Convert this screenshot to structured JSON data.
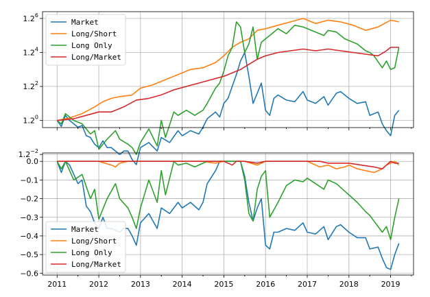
{
  "chart_data": [
    {
      "type": "line",
      "yscale": "log2",
      "ylim": [
        -0.42,
        6.4
      ],
      "xlim": [
        2010.65,
        2019.55
      ],
      "grid": true,
      "legend_placement": "top-left",
      "yticks": [
        {
          "exp": 6,
          "label": "6"
        },
        {
          "exp": 4,
          "label": "4"
        },
        {
          "exp": 2,
          "label": "2"
        },
        {
          "exp": 0,
          "label": "0"
        },
        {
          "exp": -2,
          "label": "−2"
        }
      ],
      "ytick_base": "1.2",
      "series": [
        {
          "name": "Market",
          "color": "#1f77b4",
          "x": [
            2011.0,
            2011.1,
            2011.2,
            2011.3,
            2011.5,
            2011.6,
            2011.7,
            2011.8,
            2011.9,
            2012.0,
            2012.1,
            2012.2,
            2012.3,
            2012.5,
            2012.6,
            2012.7,
            2012.8,
            2012.9,
            2013.0,
            2013.2,
            2013.4,
            2013.5,
            2013.7,
            2013.9,
            2014.0,
            2014.2,
            2014.4,
            2014.5,
            2014.6,
            2014.8,
            2014.9,
            2015.0,
            2015.1,
            2015.2,
            2015.3,
            2015.4,
            2015.5,
            2015.6,
            2015.7,
            2015.8,
            2015.9,
            2016.0,
            2016.1,
            2016.2,
            2016.3,
            2016.5,
            2016.7,
            2016.9,
            2017.0,
            2017.2,
            2017.4,
            2017.5,
            2017.7,
            2017.8,
            2018.0,
            2018.2,
            2018.4,
            2018.5,
            2018.7,
            2018.8,
            2018.9,
            2019.0,
            2019.1,
            2019.2
          ],
          "y": [
            0,
            -0.35,
            0.3,
            0,
            -0.4,
            -0.3,
            -0.9,
            -1.0,
            -1.4,
            -1.6,
            -1.2,
            -1.6,
            -1.6,
            -2.0,
            -1.8,
            -1.8,
            -2.3,
            -2.6,
            -1.6,
            -1.3,
            -1.8,
            -1.0,
            -1.3,
            -0.6,
            -0.9,
            -0.6,
            -0.8,
            -0.4,
            0.1,
            0.5,
            0.2,
            1.0,
            1.3,
            2.0,
            2.7,
            3.5,
            4.0,
            2.6,
            1.0,
            1.6,
            2.2,
            0.6,
            0.3,
            1.3,
            1.5,
            1.2,
            1.1,
            1.7,
            1.2,
            1.0,
            1.4,
            0.9,
            1.6,
            1.7,
            1.3,
            1.0,
            1.1,
            0.3,
            0.5,
            -0.2,
            -0.6,
            -0.9,
            0.3,
            0.6
          ]
        },
        {
          "name": "Long/Short",
          "color": "#ff7f0e",
          "x": [
            2011.0,
            2011.3,
            2011.6,
            2011.9,
            2012.1,
            2012.3,
            2012.5,
            2012.8,
            2013.0,
            2013.3,
            2013.6,
            2013.9,
            2014.2,
            2014.5,
            2014.8,
            2015.0,
            2015.2,
            2015.4,
            2015.6,
            2015.8,
            2016.0,
            2016.3,
            2016.6,
            2016.9,
            2017.2,
            2017.5,
            2017.8,
            2018.1,
            2018.4,
            2018.7,
            2019.0,
            2019.2
          ],
          "y": [
            0,
            0.15,
            0.4,
            0.8,
            1.1,
            1.3,
            1.4,
            1.5,
            1.9,
            2.1,
            2.4,
            2.7,
            3.0,
            3.1,
            3.4,
            3.8,
            4.3,
            4.6,
            4.8,
            5.3,
            5.4,
            5.6,
            5.8,
            6.0,
            5.7,
            5.9,
            5.8,
            5.6,
            5.3,
            5.5,
            5.9,
            5.8
          ]
        },
        {
          "name": "Long Only",
          "color": "#2ca02c",
          "x": [
            2011.0,
            2011.1,
            2011.2,
            2011.4,
            2011.6,
            2011.8,
            2011.9,
            2012.0,
            2012.2,
            2012.4,
            2012.5,
            2012.7,
            2012.8,
            2012.9,
            2013.0,
            2013.2,
            2013.4,
            2013.5,
            2013.6,
            2013.8,
            2013.9,
            2014.1,
            2014.3,
            2014.5,
            2014.6,
            2014.8,
            2014.9,
            2015.0,
            2015.1,
            2015.2,
            2015.3,
            2015.4,
            2015.5,
            2015.6,
            2015.7,
            2015.8,
            2015.9,
            2016.0,
            2016.1,
            2016.3,
            2016.5,
            2016.7,
            2016.9,
            2017.0,
            2017.2,
            2017.4,
            2017.5,
            2017.7,
            2017.9,
            2018.0,
            2018.2,
            2018.4,
            2018.5,
            2018.6,
            2018.8,
            2018.9,
            2019.0,
            2019.1,
            2019.2
          ],
          "y": [
            0,
            -0.2,
            0.4,
            0,
            -0.2,
            -0.8,
            -0.6,
            -1.7,
            -1.1,
            -0.6,
            -1.1,
            -1.4,
            -1.6,
            -2.0,
            -1.3,
            -0.5,
            -1.5,
            0.0,
            -1.0,
            0.5,
            0.3,
            0.6,
            0.3,
            0.6,
            1.0,
            1.9,
            2.2,
            2.9,
            3.8,
            4.3,
            5.8,
            5.5,
            4.0,
            4.5,
            5.5,
            3.6,
            4.6,
            4.8,
            5.0,
            5.4,
            5.1,
            5.6,
            5.5,
            5.4,
            5.2,
            5.0,
            5.3,
            5.2,
            4.8,
            4.7,
            4.5,
            4.1,
            4.0,
            3.8,
            3.1,
            3.5,
            3.0,
            3.1,
            4.3
          ]
        },
        {
          "name": "Long/Market",
          "color": "#d62728",
          "x": [
            2011.0,
            2011.4,
            2011.7,
            2012.0,
            2012.3,
            2012.6,
            2012.9,
            2013.2,
            2013.5,
            2013.8,
            2014.1,
            2014.4,
            2014.7,
            2015.0,
            2015.2,
            2015.4,
            2015.6,
            2015.8,
            2016.0,
            2016.3,
            2016.6,
            2016.9,
            2017.2,
            2017.5,
            2017.8,
            2018.1,
            2018.4,
            2018.7,
            2018.9,
            2019.0,
            2019.2
          ],
          "y": [
            0,
            0.1,
            0.3,
            0.5,
            0.5,
            0.8,
            1.2,
            1.3,
            1.5,
            1.8,
            2.0,
            2.2,
            2.4,
            2.6,
            2.8,
            3.0,
            3.3,
            3.6,
            3.8,
            4.0,
            4.1,
            4.2,
            4.1,
            4.2,
            4.1,
            4.0,
            3.9,
            3.8,
            4.1,
            4.3,
            4.3
          ]
        }
      ]
    },
    {
      "type": "line",
      "ylim": [
        -0.61,
        0.045
      ],
      "xlim": [
        2010.65,
        2019.55
      ],
      "grid": true,
      "legend_placement": "bottom-left",
      "yticks": [
        0.0,
        -0.1,
        -0.2,
        -0.3,
        -0.4,
        -0.5,
        -0.6
      ],
      "ytick_labels": [
        "0.0",
        "−0.1",
        "−0.2",
        "−0.3",
        "−0.4",
        "−0.5",
        "−0.6"
      ],
      "xticks": [
        2011,
        2012,
        2013,
        2014,
        2015,
        2016,
        2017,
        2018,
        2019
      ],
      "xtick_labels": [
        "2011",
        "2012",
        "2013",
        "2014",
        "2015",
        "2016",
        "2017",
        "2018",
        "2019"
      ],
      "series": [
        {
          "name": "Market",
          "color": "#1f77b4",
          "x": [
            2011.0,
            2011.1,
            2011.2,
            2011.3,
            2011.5,
            2011.6,
            2011.7,
            2011.8,
            2011.9,
            2012.0,
            2012.1,
            2012.2,
            2012.3,
            2012.5,
            2012.6,
            2012.7,
            2012.8,
            2012.9,
            2013.0,
            2013.2,
            2013.4,
            2013.5,
            2013.7,
            2013.9,
            2014.0,
            2014.2,
            2014.4,
            2014.5,
            2014.6,
            2014.8,
            2014.9,
            2015.0,
            2015.3,
            2015.4,
            2015.5,
            2015.6,
            2015.7,
            2015.8,
            2015.9,
            2016.0,
            2016.1,
            2016.2,
            2016.3,
            2016.5,
            2016.7,
            2016.9,
            2017.0,
            2017.2,
            2017.4,
            2017.5,
            2017.7,
            2017.8,
            2018.0,
            2018.2,
            2018.4,
            2018.5,
            2018.7,
            2018.8,
            2018.9,
            2019.0,
            2019.1,
            2019.2
          ],
          "y": [
            0,
            -0.06,
            0,
            -0.02,
            -0.12,
            -0.1,
            -0.24,
            -0.27,
            -0.33,
            -0.36,
            -0.3,
            -0.36,
            -0.36,
            -0.38,
            -0.36,
            -0.36,
            -0.4,
            -0.45,
            -0.33,
            -0.28,
            -0.36,
            -0.25,
            -0.28,
            -0.22,
            -0.25,
            -0.22,
            -0.26,
            -0.22,
            -0.12,
            -0.05,
            0,
            0,
            0,
            0,
            -0.08,
            -0.22,
            -0.32,
            -0.25,
            -0.2,
            -0.45,
            -0.47,
            -0.38,
            -0.38,
            -0.36,
            -0.37,
            -0.33,
            -0.38,
            -0.39,
            -0.35,
            -0.42,
            -0.35,
            -0.34,
            -0.38,
            -0.41,
            -0.41,
            -0.47,
            -0.46,
            -0.52,
            -0.57,
            -0.58,
            -0.5,
            -0.44
          ]
        },
        {
          "name": "Long/Short",
          "color": "#ff7f0e",
          "x": [
            2011.0,
            2011.5,
            2012.0,
            2012.3,
            2012.4,
            2012.5,
            2012.7,
            2013.0,
            2013.5,
            2014.0,
            2014.5,
            2014.8,
            2015.0,
            2015.3,
            2015.5,
            2015.8,
            2016.0,
            2016.3,
            2016.6,
            2016.9,
            2017.0,
            2017.1,
            2017.3,
            2017.5,
            2017.7,
            2017.9,
            2018.0,
            2018.2,
            2018.4,
            2018.6,
            2018.8,
            2018.9,
            2019.0,
            2019.1,
            2019.2
          ],
          "y": [
            0,
            0,
            0,
            -0.02,
            -0.03,
            -0.01,
            0,
            0,
            0,
            0,
            0,
            -0.01,
            0,
            0,
            0,
            -0.02,
            0,
            0,
            0,
            0,
            0,
            -0.01,
            -0.03,
            -0.02,
            -0.04,
            -0.03,
            -0.02,
            -0.04,
            -0.05,
            -0.06,
            -0.04,
            -0.02,
            -0.01,
            0,
            -0.02
          ]
        },
        {
          "name": "Long Only",
          "color": "#2ca02c",
          "x": [
            2011.0,
            2011.1,
            2011.2,
            2011.4,
            2011.6,
            2011.8,
            2011.9,
            2012.0,
            2012.2,
            2012.4,
            2012.5,
            2012.7,
            2012.8,
            2012.9,
            2013.0,
            2013.2,
            2013.4,
            2013.5,
            2013.6,
            2013.8,
            2013.9,
            2014.1,
            2014.3,
            2014.5,
            2014.6,
            2014.8,
            2015.0,
            2015.3,
            2015.4,
            2015.5,
            2015.6,
            2015.7,
            2015.8,
            2015.9,
            2016.0,
            2016.1,
            2016.3,
            2016.5,
            2016.7,
            2016.9,
            2017.0,
            2017.2,
            2017.4,
            2017.5,
            2017.7,
            2017.9,
            2018.0,
            2018.2,
            2018.4,
            2018.5,
            2018.6,
            2018.8,
            2018.9,
            2019.0,
            2019.1,
            2019.2
          ],
          "y": [
            0,
            -0.04,
            0,
            -0.1,
            -0.07,
            -0.2,
            -0.15,
            -0.31,
            -0.2,
            -0.12,
            -0.2,
            -0.25,
            -0.3,
            -0.36,
            -0.25,
            -0.1,
            -0.22,
            -0.05,
            -0.18,
            0,
            -0.02,
            -0.01,
            -0.03,
            -0.01,
            0,
            0,
            0,
            0,
            0,
            -0.1,
            -0.28,
            -0.32,
            -0.15,
            -0.08,
            -0.05,
            -0.3,
            -0.22,
            -0.13,
            -0.1,
            -0.11,
            -0.09,
            -0.12,
            -0.15,
            -0.1,
            -0.12,
            -0.16,
            -0.18,
            -0.22,
            -0.27,
            -0.29,
            -0.32,
            -0.38,
            -0.35,
            -0.42,
            -0.3,
            -0.2
          ]
        },
        {
          "name": "Long/Market",
          "color": "#d62728",
          "x": [
            2011.0,
            2012.0,
            2013.0,
            2014.0,
            2015.0,
            2015.2,
            2015.3,
            2015.5,
            2015.8,
            2016.0,
            2016.5,
            2017.0,
            2017.3,
            2017.5,
            2017.8,
            2018.0,
            2018.3,
            2018.6,
            2018.8,
            2018.9,
            2019.0,
            2019.1,
            2019.2
          ],
          "y": [
            0,
            0,
            0,
            0,
            0,
            -0.02,
            0,
            0,
            -0.01,
            0,
            0,
            0,
            0,
            -0.01,
            -0.01,
            -0.01,
            -0.02,
            -0.03,
            -0.04,
            -0.02,
            0,
            -0.01,
            -0.01
          ]
        }
      ]
    }
  ]
}
